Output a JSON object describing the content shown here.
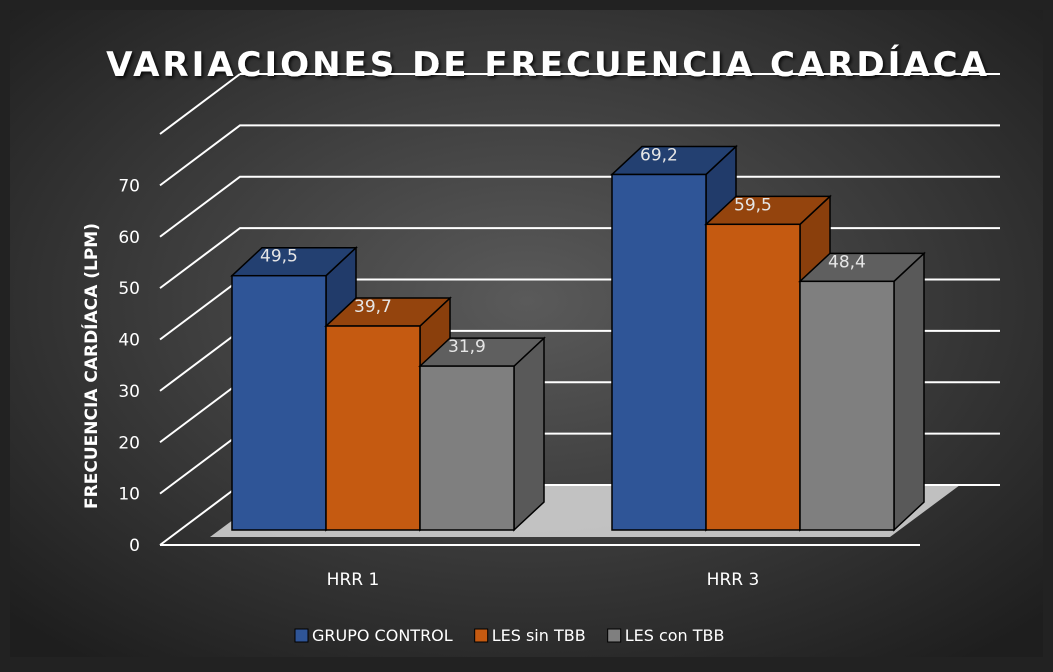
{
  "chart_data": {
    "type": "bar3d",
    "title": "VARIACIONES DE FRECUENCIA CARDÍACA",
    "ylabel": "FRECUENCIA CARDÍACA (LPM)",
    "categories": [
      "HRR 1",
      "HRR 3"
    ],
    "series": [
      {
        "name": "GRUPO CONTROL",
        "color": "#2f5597",
        "values": [
          49.5,
          69.2
        ],
        "value_labels": [
          "49,5",
          "69,2"
        ]
      },
      {
        "name": "LES sin TBB",
        "color": "#c55a11",
        "values": [
          39.7,
          59.5
        ],
        "value_labels": [
          "39,7",
          "59,5"
        ]
      },
      {
        "name": "LES con TBB",
        "color": "#7f7f7f",
        "values": [
          31.9,
          48.4
        ],
        "value_labels": [
          "31,9",
          "48,4"
        ]
      }
    ],
    "ylim": [
      0,
      80
    ],
    "yticks": [
      0,
      10,
      20,
      30,
      40,
      50,
      60,
      70
    ],
    "grid": true,
    "legend": "bottom"
  }
}
